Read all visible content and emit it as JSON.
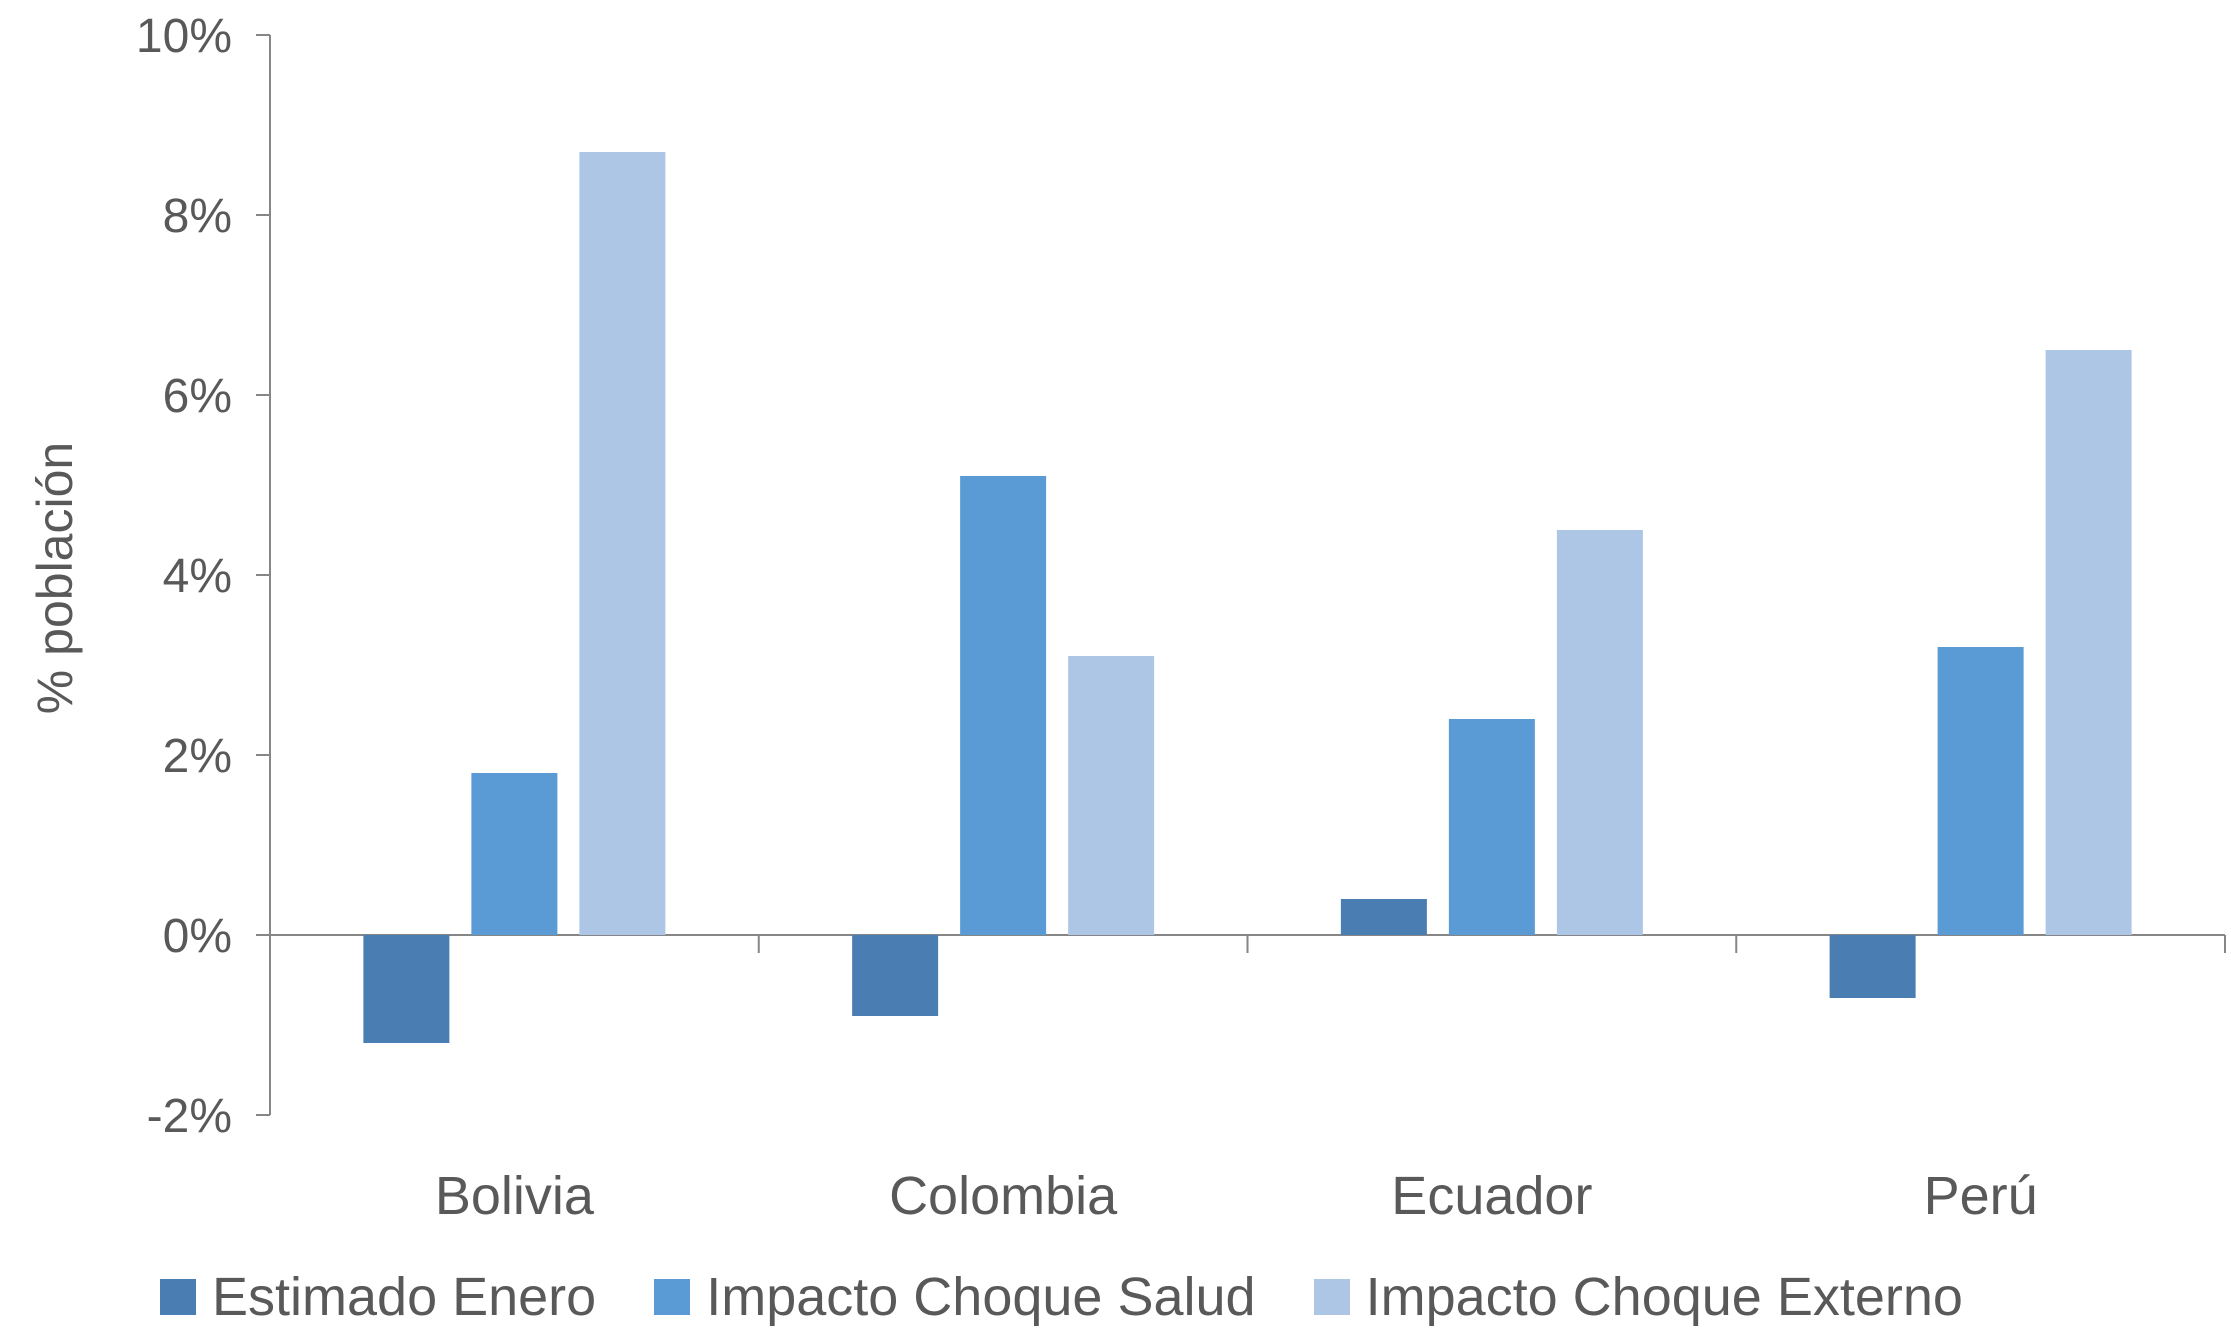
{
  "chart_data": {
    "type": "bar",
    "title": "",
    "xlabel": "",
    "ylabel": "% población",
    "ylim": [
      -2,
      10
    ],
    "yticks": [
      -2,
      0,
      2,
      4,
      6,
      8,
      10
    ],
    "ytick_labels": [
      "-2%",
      "0%",
      "2%",
      "4%",
      "6%",
      "8%",
      "10%"
    ],
    "categories": [
      "Bolivia",
      "Colombia",
      "Ecuador",
      "Perú"
    ],
    "series": [
      {
        "name": "Estimado Enero",
        "color": "#4a7db1",
        "values": [
          -1.2,
          -0.9,
          0.4,
          -0.7
        ]
      },
      {
        "name": "Impacto Choque Salud",
        "color": "#5b9bd5",
        "values": [
          1.8,
          5.1,
          2.4,
          3.2
        ]
      },
      {
        "name": "Impacto Choque Externo",
        "color": "#aec6e6",
        "values": [
          8.7,
          3.1,
          4.5,
          6.5
        ]
      }
    ],
    "legend_position": "bottom",
    "grid": false
  }
}
